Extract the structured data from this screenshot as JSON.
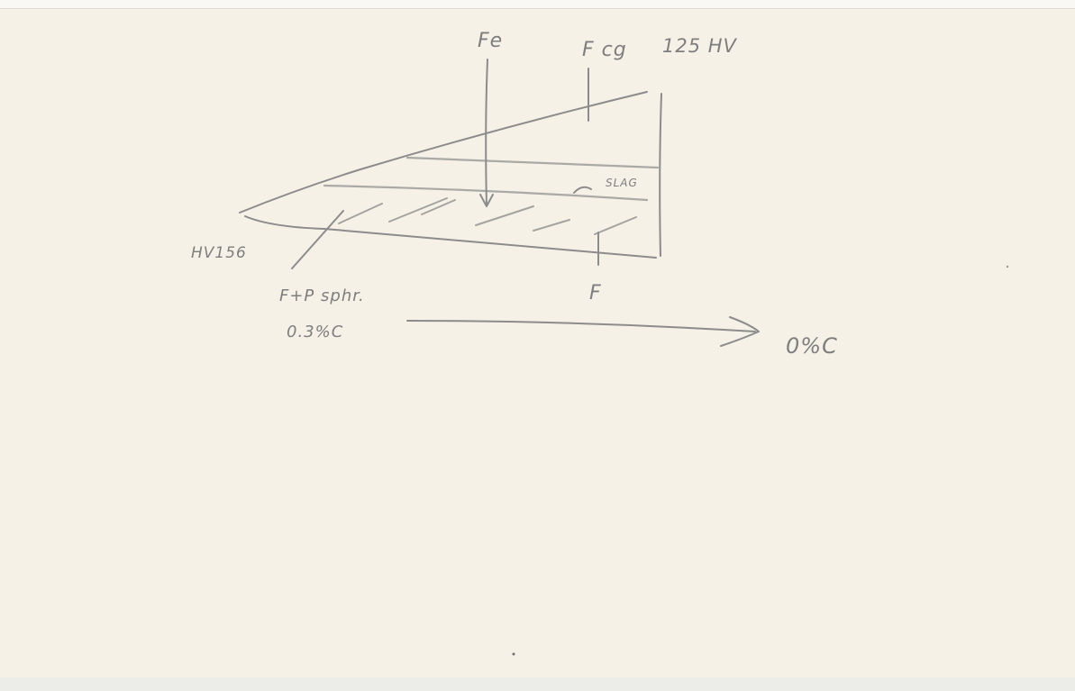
{
  "labels": {
    "fe": "Fe",
    "fcg": "F cg",
    "hardness_top": "125 HV",
    "slag": "SLAG",
    "hardness_left": "HV156",
    "ferrite": "F",
    "ferrite_pearlite": "F+P sphr.",
    "carbon_left": "0.3%C",
    "carbon_right": "0%C"
  }
}
